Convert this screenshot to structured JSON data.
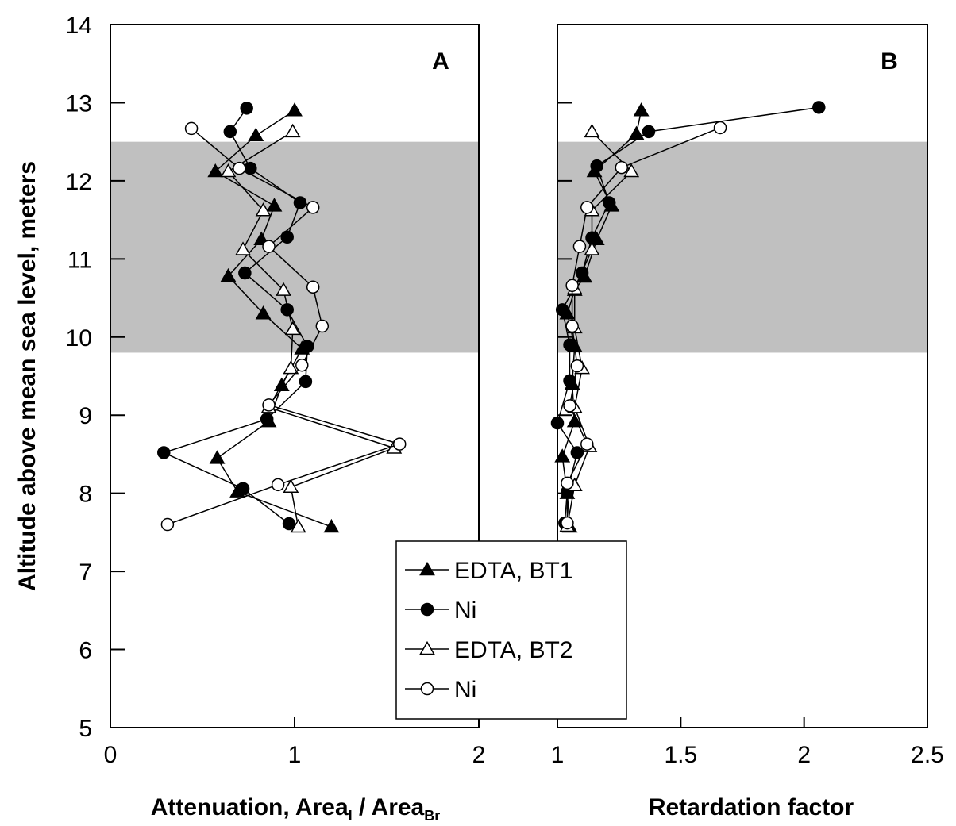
{
  "chart_data": [
    {
      "type": "line",
      "panel_label": "A",
      "ylabel": "Altitude above mean sea level, meters",
      "xlabel": {
        "main": "Attenuation, Area",
        "sub1": "I",
        "mid": " / Area",
        "sub2": "Br"
      },
      "xlim": [
        0,
        2
      ],
      "ylim": [
        5,
        14
      ],
      "x_ticks": [
        "0",
        "1",
        "2"
      ],
      "y_ticks": [
        "5",
        "6",
        "7",
        "8",
        "9",
        "10",
        "11",
        "12",
        "13",
        "14"
      ],
      "shaded_band": [
        9.8,
        12.5
      ],
      "series": [
        {
          "name": "EDTA, BT1",
          "marker": "filled-triangle",
          "points": [
            {
              "x": 1.0,
              "y": 12.9
            },
            {
              "x": 0.79,
              "y": 12.58
            },
            {
              "x": 0.57,
              "y": 12.12
            },
            {
              "x": 0.89,
              "y": 11.68
            },
            {
              "x": 0.82,
              "y": 11.25
            },
            {
              "x": 0.64,
              "y": 10.78
            },
            {
              "x": 0.83,
              "y": 10.3
            },
            {
              "x": 1.04,
              "y": 9.85
            },
            {
              "x": 0.93,
              "y": 9.38
            },
            {
              "x": 0.86,
              "y": 8.92
            },
            {
              "x": 0.58,
              "y": 8.45
            },
            {
              "x": 0.69,
              "y": 8.02
            },
            {
              "x": 1.2,
              "y": 7.57
            }
          ]
        },
        {
          "name": "Ni",
          "marker": "filled-circle",
          "points": [
            {
              "x": 0.74,
              "y": 12.93
            },
            {
              "x": 0.65,
              "y": 12.63
            },
            {
              "x": 0.76,
              "y": 12.16
            },
            {
              "x": 1.03,
              "y": 11.72
            },
            {
              "x": 0.96,
              "y": 11.28
            },
            {
              "x": 0.73,
              "y": 10.82
            },
            {
              "x": 0.96,
              "y": 10.35
            },
            {
              "x": 1.07,
              "y": 9.88
            },
            {
              "x": 1.06,
              "y": 9.43
            },
            {
              "x": 0.85,
              "y": 8.95
            },
            {
              "x": 0.29,
              "y": 8.52
            },
            {
              "x": 0.72,
              "y": 8.06
            },
            {
              "x": 0.97,
              "y": 7.61
            }
          ]
        },
        {
          "name": "EDTA, BT2",
          "marker": "open-triangle",
          "points": [
            {
              "x": 0.99,
              "y": 12.63
            },
            {
              "x": 0.64,
              "y": 12.12
            },
            {
              "x": 0.83,
              "y": 11.62
            },
            {
              "x": 0.72,
              "y": 11.12
            },
            {
              "x": 0.94,
              "y": 10.6
            },
            {
              "x": 0.99,
              "y": 10.1
            },
            {
              "x": 0.98,
              "y": 9.6
            },
            {
              "x": 0.86,
              "y": 9.1
            },
            {
              "x": 1.54,
              "y": 8.58
            },
            {
              "x": 0.98,
              "y": 8.08
            },
            {
              "x": 1.02,
              "y": 7.57
            }
          ]
        },
        {
          "name": "Ni",
          "marker": "open-circle",
          "points": [
            {
              "x": 0.44,
              "y": 12.67
            },
            {
              "x": 0.7,
              "y": 12.16
            },
            {
              "x": 1.1,
              "y": 11.66
            },
            {
              "x": 0.86,
              "y": 11.16
            },
            {
              "x": 1.1,
              "y": 10.64
            },
            {
              "x": 1.15,
              "y": 10.14
            },
            {
              "x": 1.04,
              "y": 9.64
            },
            {
              "x": 0.86,
              "y": 9.13
            },
            {
              "x": 1.57,
              "y": 8.63
            },
            {
              "x": 0.91,
              "y": 8.11
            },
            {
              "x": 0.31,
              "y": 7.6
            }
          ]
        }
      ]
    },
    {
      "type": "line",
      "panel_label": "B",
      "xlabel": "Retardation factor",
      "xlim": [
        1,
        2.5
      ],
      "ylim": [
        5,
        14
      ],
      "x_ticks": [
        "1",
        "1.5",
        "2",
        "2.5"
      ],
      "shaded_band": [
        9.8,
        12.5
      ],
      "series": [
        {
          "name": "EDTA, BT1",
          "marker": "filled-triangle",
          "points": [
            {
              "x": 1.34,
              "y": 12.9
            },
            {
              "x": 1.32,
              "y": 12.6
            },
            {
              "x": 1.15,
              "y": 12.12
            },
            {
              "x": 1.22,
              "y": 11.68
            },
            {
              "x": 1.16,
              "y": 11.25
            },
            {
              "x": 1.11,
              "y": 10.77
            },
            {
              "x": 1.07,
              "y": 10.6
            },
            {
              "x": 1.04,
              "y": 10.3
            },
            {
              "x": 1.07,
              "y": 9.88
            },
            {
              "x": 1.06,
              "y": 9.4
            },
            {
              "x": 1.07,
              "y": 8.92
            },
            {
              "x": 1.02,
              "y": 8.47
            },
            {
              "x": 1.04,
              "y": 8.0
            },
            {
              "x": 1.05,
              "y": 7.57
            }
          ]
        },
        {
          "name": "Ni",
          "marker": "filled-circle",
          "points": [
            {
              "x": 2.06,
              "y": 12.94
            },
            {
              "x": 1.37,
              "y": 12.63
            },
            {
              "x": 1.16,
              "y": 12.19
            },
            {
              "x": 1.21,
              "y": 11.72
            },
            {
              "x": 1.14,
              "y": 11.27
            },
            {
              "x": 1.1,
              "y": 10.82
            },
            {
              "x": 1.02,
              "y": 10.35
            },
            {
              "x": 1.05,
              "y": 9.9
            },
            {
              "x": 1.05,
              "y": 9.44
            },
            {
              "x": 1.0,
              "y": 8.9
            },
            {
              "x": 1.08,
              "y": 8.52
            },
            {
              "x": 1.04,
              "y": 8.02
            },
            {
              "x": 1.03,
              "y": 7.62
            }
          ]
        },
        {
          "name": "EDTA, BT2",
          "marker": "open-triangle",
          "points": [
            {
              "x": 1.14,
              "y": 12.63
            },
            {
              "x": 1.3,
              "y": 12.12
            },
            {
              "x": 1.14,
              "y": 11.62
            },
            {
              "x": 1.14,
              "y": 11.12
            },
            {
              "x": 1.07,
              "y": 10.62
            },
            {
              "x": 1.07,
              "y": 10.12
            },
            {
              "x": 1.1,
              "y": 9.6
            },
            {
              "x": 1.07,
              "y": 9.1
            },
            {
              "x": 1.13,
              "y": 8.6
            },
            {
              "x": 1.07,
              "y": 8.1
            },
            {
              "x": 1.04,
              "y": 7.58
            }
          ]
        },
        {
          "name": "Ni",
          "marker": "open-circle",
          "points": [
            {
              "x": 1.66,
              "y": 12.68
            },
            {
              "x": 1.26,
              "y": 12.17
            },
            {
              "x": 1.12,
              "y": 11.66
            },
            {
              "x": 1.09,
              "y": 11.16
            },
            {
              "x": 1.06,
              "y": 10.66
            },
            {
              "x": 1.06,
              "y": 10.14
            },
            {
              "x": 1.08,
              "y": 9.63
            },
            {
              "x": 1.05,
              "y": 9.12
            },
            {
              "x": 1.12,
              "y": 8.63
            },
            {
              "x": 1.04,
              "y": 8.13
            },
            {
              "x": 1.04,
              "y": 7.62
            }
          ]
        }
      ]
    }
  ],
  "legend": {
    "placement": "bottom-center",
    "entries": [
      {
        "label": "EDTA, BT1",
        "marker": "filled-triangle"
      },
      {
        "label": "Ni",
        "marker": "filled-circle"
      },
      {
        "label": "EDTA, BT2",
        "marker": "open-triangle"
      },
      {
        "label": "Ni",
        "marker": "open-circle"
      }
    ]
  },
  "colors": {
    "band": "#c0c0c0",
    "ink": "#000000",
    "background": "#ffffff"
  }
}
